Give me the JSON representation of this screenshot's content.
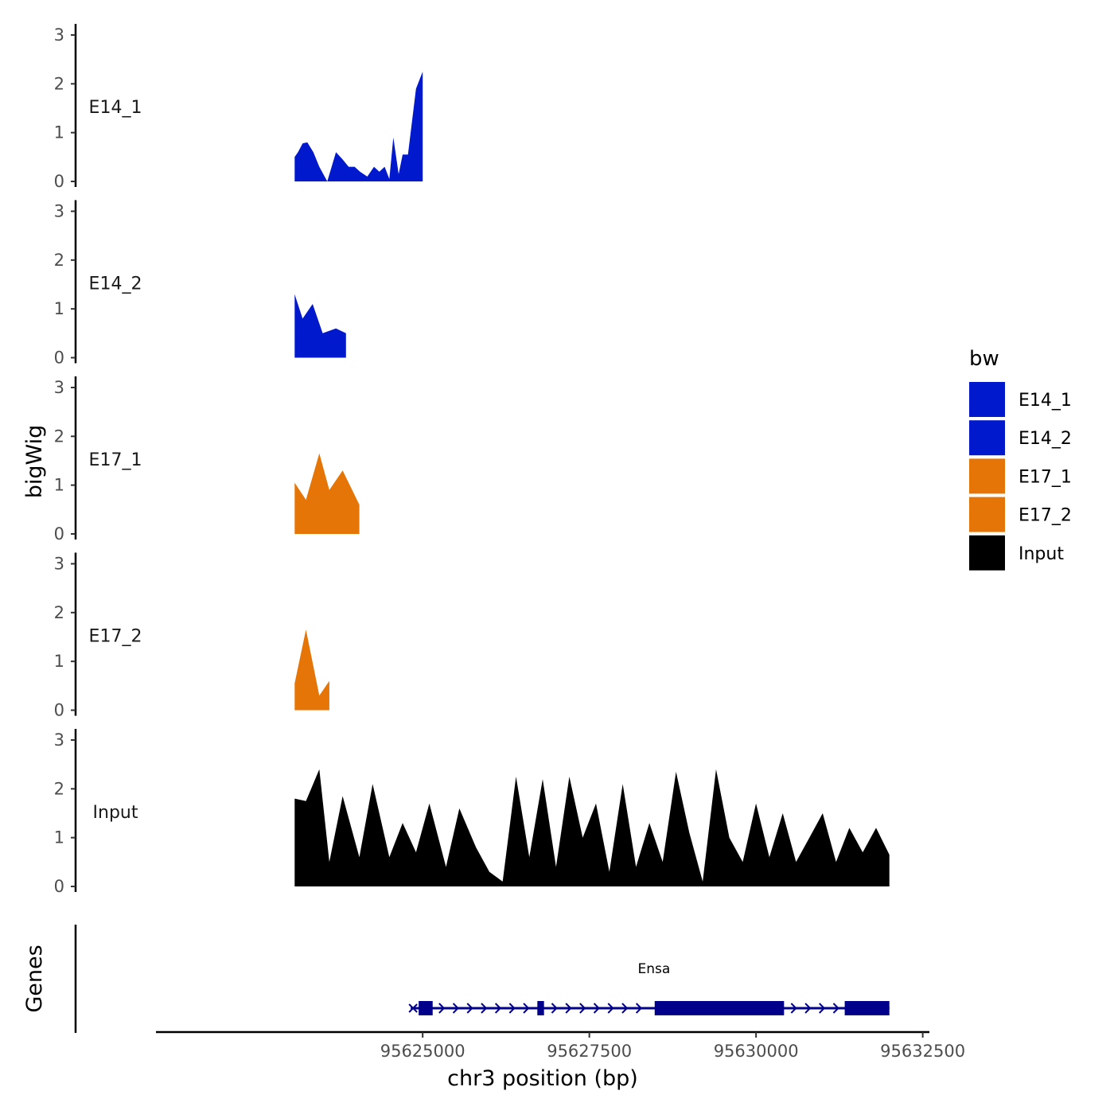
{
  "chart_data": {
    "type": "area",
    "y_axis_title": "bigWig",
    "genes_axis_title": "Genes",
    "x_axis_title": "chr3 position (bp)",
    "x_range": [
      95621000,
      95632600
    ],
    "x_ticks": [
      {
        "value": 95625000,
        "label": "95625000"
      },
      {
        "value": 95627500,
        "label": "95627500"
      },
      {
        "value": 95630000,
        "label": "95630000"
      },
      {
        "value": 95632500,
        "label": "95632500"
      }
    ],
    "ylim": [
      0,
      3
    ],
    "y_ticks": [
      {
        "value": 0,
        "label": "0"
      },
      {
        "value": 1,
        "label": "1"
      },
      {
        "value": 2,
        "label": "2"
      },
      {
        "value": 3,
        "label": "3"
      }
    ],
    "legend": {
      "title": "bw",
      "entries": [
        {
          "label": "E14_1",
          "color": "#0019cc"
        },
        {
          "label": "E14_2",
          "color": "#0019cc"
        },
        {
          "label": "E17_1",
          "color": "#e57507"
        },
        {
          "label": "E17_2",
          "color": "#e57507"
        },
        {
          "label": "Input",
          "color": "#000000"
        }
      ]
    },
    "tracks": [
      {
        "name": "E14_1",
        "color": "#0019cc",
        "segments": [
          {
            "x": [
              95623080,
              95623130,
              95623200,
              95623270,
              95623360,
              95623450,
              95623570,
              95623700,
              95623800,
              95623890,
              95623980,
              95624060,
              95624170,
              95624270,
              95624350,
              95624430,
              95624500,
              95624560,
              95624640,
              95624700,
              95624780,
              95624900,
              95625000
            ],
            "y": [
              0.5,
              0.6,
              0.78,
              0.8,
              0.6,
              0.3,
              0,
              0.6,
              0.45,
              0.3,
              0.3,
              0.2,
              0.1,
              0.3,
              0.2,
              0.3,
              0.05,
              0.9,
              0.15,
              0.55,
              0.55,
              1.9,
              2.25
            ]
          }
        ]
      },
      {
        "name": "E14_2",
        "color": "#0019cc",
        "segments": [
          {
            "x": [
              95623080,
              95623200,
              95623350,
              95623500,
              95623700,
              95623850
            ],
            "y": [
              1.3,
              0.8,
              1.1,
              0.5,
              0.6,
              0.5
            ]
          }
        ]
      },
      {
        "name": "E17_1",
        "color": "#e57507",
        "segments": [
          {
            "x": [
              95623080,
              95623250,
              95623450,
              95623600,
              95623800,
              95624050
            ],
            "y": [
              1.05,
              0.7,
              1.65,
              0.9,
              1.3,
              0.6
            ]
          }
        ]
      },
      {
        "name": "E17_2",
        "color": "#e57507",
        "segments": [
          {
            "x": [
              95623080,
              95623250,
              95623450,
              95623600
            ],
            "y": [
              0.55,
              1.65,
              0.3,
              0.6
            ]
          }
        ]
      },
      {
        "name": "Input",
        "color": "#000000",
        "segments": [
          {
            "x": [
              95623080,
              95623250,
              95623450,
              95623600,
              95623800,
              95624050,
              95624250,
              95624500,
              95624700,
              95624900,
              95625100,
              95625350,
              95625550,
              95625800,
              95626000,
              95626200,
              95626400,
              95626600,
              95626800,
              95627000,
              95627200,
              95627400,
              95627600,
              95627800,
              95628000,
              95628200,
              95628400,
              95628600,
              95628800,
              95629000,
              95629200,
              95629400,
              95629600,
              95629800,
              95630000,
              95630200,
              95630400,
              95630600,
              95630800,
              95631000,
              95631200,
              95631400,
              95631600,
              95631800,
              95632000
            ],
            "y": [
              1.8,
              1.75,
              2.4,
              0.5,
              1.85,
              0.6,
              2.1,
              0.6,
              1.3,
              0.7,
              1.7,
              0.4,
              1.6,
              0.8,
              0.3,
              0.1,
              2.25,
              0.6,
              2.2,
              0.4,
              2.25,
              1.0,
              1.7,
              0.3,
              2.1,
              0.4,
              1.3,
              0.5,
              2.35,
              1.1,
              0.1,
              2.4,
              1.0,
              0.5,
              1.7,
              0.6,
              1.5,
              0.5,
              1.0,
              1.5,
              0.5,
              1.2,
              0.7,
              1.2,
              0.65
            ]
          }
        ]
      }
    ],
    "gene": {
      "name": "Ensa",
      "color": "#00008b",
      "start": 95624940,
      "end": 95632000,
      "exons": [
        [
          95624940,
          95625150
        ],
        [
          95626720,
          95626820
        ],
        [
          95628480,
          95630420
        ],
        [
          95631330,
          95632000
        ]
      ]
    }
  }
}
